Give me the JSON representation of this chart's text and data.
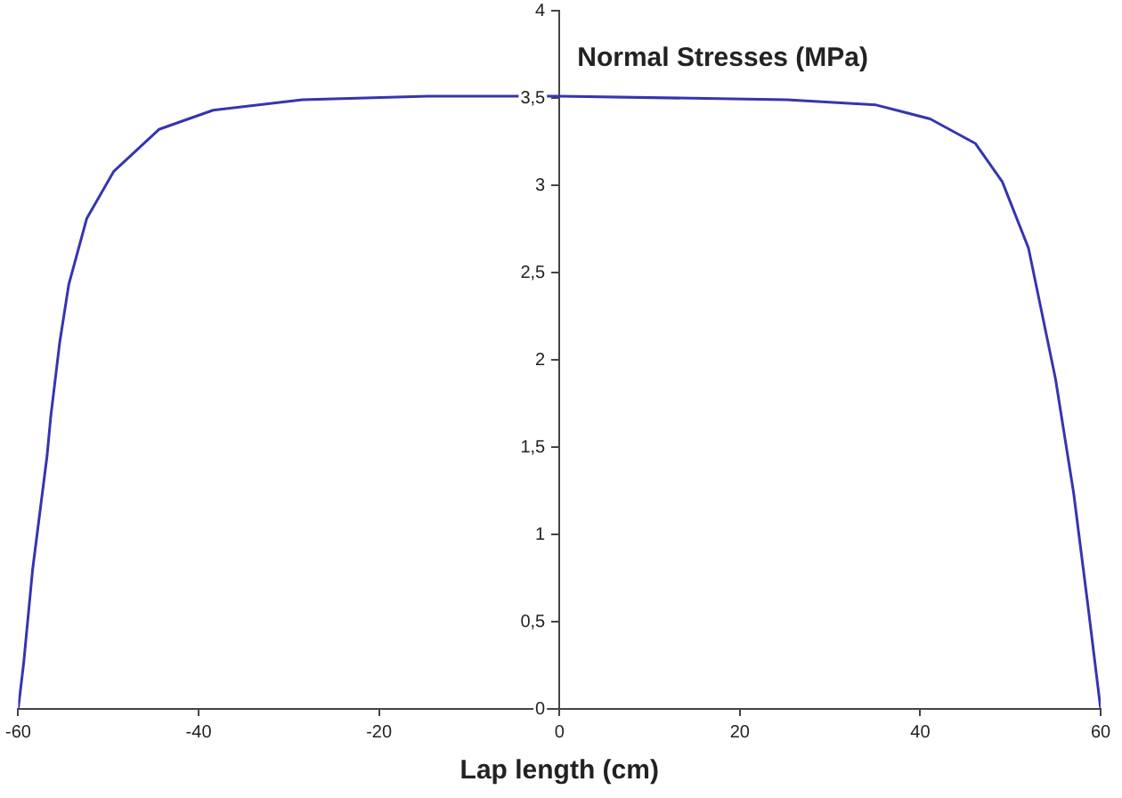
{
  "chart_data": {
    "type": "line",
    "ylabel": "Normal Stresses (MPa)",
    "xlabel": "Lap length (cm)",
    "x": [
      -60,
      -59.4,
      -58.4,
      -56.8,
      -56.4,
      -55.4,
      -54.4,
      -52.4,
      -49.4,
      -44.4,
      -38.4,
      -28.5,
      -14.6,
      0,
      25.2,
      35.1,
      41.1,
      46.1,
      49.1,
      52,
      55,
      57,
      58.6,
      60
    ],
    "series": [
      {
        "color": "#3535b0",
        "values": [
          0,
          0.26,
          0.8,
          1.45,
          1.67,
          2.1,
          2.43,
          2.81,
          3.08,
          3.32,
          3.43,
          3.49,
          3.51,
          3.51,
          3.49,
          3.46,
          3.38,
          3.24,
          3.02,
          2.64,
          1.89,
          1.24,
          0.59,
          0
        ]
      }
    ],
    "xlim": [
      -60,
      60
    ],
    "xticks": [
      -60,
      -40,
      -20,
      0,
      20,
      40,
      60
    ],
    "ylim": [
      0,
      4
    ],
    "yticks": [
      0,
      {
        "value": 0.5,
        "label": "0,5"
      },
      1,
      {
        "value": 1.5,
        "label": "1,5"
      },
      2,
      {
        "value": 2.5,
        "label": "2,5"
      },
      3,
      {
        "value": 3.5,
        "label": "3,5"
      },
      4
    ],
    "grid": false,
    "legend": false,
    "marker": "none",
    "line_style": "solid"
  }
}
